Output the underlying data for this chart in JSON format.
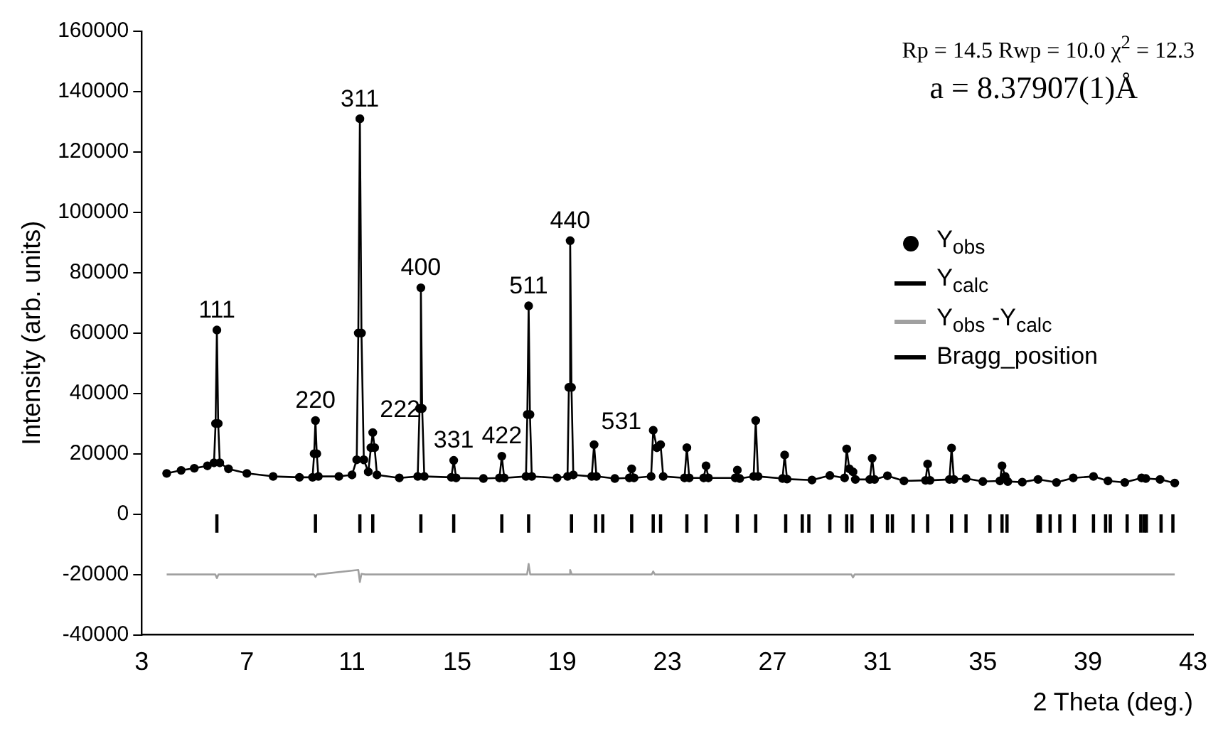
{
  "chart_data": {
    "type": "scatter",
    "xlabel": "2 Theta (deg.)",
    "ylabel": "Intensity (arb. units)",
    "xlim": [
      3,
      43
    ],
    "xticks": [
      3,
      7,
      11,
      15,
      19,
      23,
      27,
      31,
      35,
      39,
      43
    ],
    "ylim": [
      -40000,
      160000
    ],
    "yticks": [
      -40000,
      -20000,
      0,
      20000,
      40000,
      60000,
      80000,
      100000,
      120000,
      140000,
      160000
    ],
    "grid": false,
    "legend": "right",
    "series": [
      {
        "name": "Y$_{obs}$",
        "marker": "circle",
        "color": "#000000",
        "x": [
          3.95,
          4.5,
          5.0,
          5.5,
          5.75,
          5.81,
          5.86,
          5.91,
          5.97,
          6.3,
          7.0,
          8.0,
          9.0,
          9.5,
          9.56,
          9.61,
          9.66,
          9.72,
          10.5,
          11.0,
          11.18,
          11.24,
          11.3,
          11.36,
          11.45,
          11.62,
          11.72,
          11.79,
          11.86,
          11.95,
          12.8,
          13.5,
          13.57,
          13.62,
          13.67,
          13.75,
          14.78,
          14.87,
          14.96,
          16.0,
          16.61,
          16.7,
          16.79,
          17.62,
          17.67,
          17.72,
          17.77,
          17.84,
          18.8,
          19.2,
          19.25,
          19.3,
          19.35,
          19.42,
          20.12,
          20.21,
          20.3,
          21.0,
          21.55,
          21.64,
          21.73,
          22.38,
          22.46,
          22.6,
          22.74,
          22.84,
          23.65,
          23.74,
          23.83,
          24.38,
          24.47,
          24.56,
          25.58,
          25.66,
          25.75,
          26.28,
          26.36,
          26.45,
          27.38,
          27.46,
          27.55,
          28.5,
          29.18,
          29.74,
          29.82,
          29.92,
          30.06,
          30.15,
          30.7,
          30.79,
          30.88,
          31.37,
          32.0,
          32.82,
          32.9,
          32.99,
          33.73,
          33.81,
          33.9,
          34.36,
          35.0,
          35.65,
          35.73,
          35.85,
          35.95,
          36.5,
          37.1,
          37.8,
          38.44,
          39.21,
          39.76,
          40.4,
          41.04,
          41.2,
          41.74,
          42.3
        ],
        "values": [
          13500,
          14500,
          15200,
          16000,
          17000,
          30000,
          61000,
          30000,
          17000,
          15000,
          13500,
          12500,
          12200,
          12200,
          20000,
          31000,
          20000,
          12500,
          12500,
          13000,
          18000,
          60000,
          131000,
          60000,
          18000,
          14000,
          22000,
          27000,
          22000,
          13000,
          12000,
          12500,
          35000,
          75000,
          35000,
          12500,
          12200,
          17800,
          12000,
          11800,
          12000,
          19200,
          12000,
          12500,
          33000,
          69000,
          33000,
          12500,
          12000,
          12500,
          42000,
          90600,
          42000,
          13000,
          12500,
          23000,
          12500,
          11800,
          12000,
          15000,
          12000,
          12500,
          27800,
          22000,
          23000,
          12500,
          12000,
          22000,
          12000,
          12000,
          16000,
          12000,
          12000,
          14600,
          11800,
          12500,
          31000,
          12500,
          11800,
          19600,
          11600,
          11300,
          12800,
          12000,
          21600,
          15000,
          14000,
          11500,
          11500,
          18500,
          11500,
          12700,
          11000,
          11200,
          16600,
          11200,
          11500,
          21900,
          11500,
          11800,
          10800,
          11000,
          16000,
          12500,
          10800,
          10600,
          11500,
          10500,
          12000,
          12500,
          11000,
          10500,
          12000,
          11800,
          11500,
          10300
        ]
      },
      {
        "name": "Y$_{calc}$",
        "type": "line",
        "color": "#000000",
        "x": [
          3.95,
          4.5,
          5.0,
          5.5,
          5.75,
          5.81,
          5.86,
          5.91,
          5.97,
          6.3,
          7.0,
          8.0,
          9.0,
          9.5,
          9.56,
          9.61,
          9.66,
          9.72,
          10.5,
          11.0,
          11.18,
          11.24,
          11.3,
          11.36,
          11.45,
          11.62,
          11.72,
          11.79,
          11.86,
          11.95,
          12.8,
          13.5,
          13.57,
          13.62,
          13.67,
          13.75,
          14.78,
          14.87,
          14.96,
          16.0,
          16.61,
          16.7,
          16.79,
          17.62,
          17.67,
          17.72,
          17.77,
          17.84,
          18.8,
          19.2,
          19.25,
          19.3,
          19.35,
          19.42,
          20.12,
          20.21,
          20.3,
          21.0,
          21.55,
          21.64,
          21.73,
          22.38,
          22.46,
          22.6,
          22.74,
          22.84,
          23.65,
          23.74,
          23.83,
          24.38,
          24.47,
          24.56,
          25.58,
          25.66,
          25.75,
          26.28,
          26.36,
          26.45,
          27.38,
          27.46,
          27.55,
          28.5,
          29.18,
          29.74,
          29.82,
          29.92,
          30.06,
          30.15,
          30.7,
          30.79,
          30.88,
          31.37,
          32.0,
          32.82,
          32.9,
          32.99,
          33.73,
          33.81,
          33.9,
          34.36,
          35.0,
          35.65,
          35.73,
          35.85,
          35.95,
          36.5,
          37.1,
          37.8,
          38.44,
          39.21,
          39.76,
          40.4,
          41.04,
          41.2,
          41.74,
          42.3
        ],
        "values": [
          13500,
          14500,
          15200,
          16000,
          17000,
          30000,
          61000,
          30000,
          17000,
          15000,
          13500,
          12500,
          12200,
          12200,
          20000,
          31000,
          20000,
          12500,
          12500,
          13000,
          18000,
          60000,
          131000,
          60000,
          18000,
          14000,
          22000,
          27000,
          22000,
          13000,
          12000,
          12500,
          35000,
          75000,
          35000,
          12500,
          12200,
          17800,
          12000,
          11800,
          12000,
          19200,
          12000,
          12500,
          33000,
          69000,
          33000,
          12500,
          12000,
          12500,
          42000,
          90600,
          42000,
          13000,
          12500,
          23000,
          12500,
          11800,
          12000,
          15000,
          12000,
          12500,
          27800,
          22000,
          23000,
          12500,
          12000,
          22000,
          12000,
          12000,
          16000,
          12000,
          12000,
          14600,
          11800,
          12500,
          31000,
          12500,
          11800,
          19600,
          11600,
          11300,
          12800,
          12000,
          21600,
          15000,
          14000,
          11500,
          11500,
          18500,
          11500,
          12700,
          11000,
          11200,
          16600,
          11200,
          11500,
          21900,
          11500,
          11800,
          10800,
          11000,
          16000,
          12500,
          10800,
          10600,
          11500,
          10500,
          12000,
          12500,
          11000,
          10500,
          12000,
          11800,
          11500,
          10300
        ]
      },
      {
        "name": "Y$_{obs}$ -Y$_{calc}$",
        "type": "line",
        "color": "#a0a0a0",
        "x": [
          3.95,
          5.8,
          5.86,
          5.92,
          9.55,
          9.61,
          9.67,
          11.24,
          11.3,
          11.36,
          11.5,
          17.66,
          17.72,
          17.78,
          19.25,
          19.3,
          19.36,
          22.4,
          22.46,
          22.52,
          30.0,
          30.06,
          30.12,
          42.3
        ],
        "values": [
          -20000,
          -20000,
          -21200,
          -20000,
          -20000,
          -20800,
          -20000,
          -18500,
          -22500,
          -19800,
          -20000,
          -20000,
          -16500,
          -20000,
          -20000,
          -18500,
          -20000,
          -20000,
          -19000,
          -20000,
          -20000,
          -21000,
          -20000,
          -20000
        ]
      },
      {
        "name": "Bragg_position",
        "type": "bar",
        "color": "#000000",
        "base": [
          -6000,
          -6000,
          -6000,
          -6000,
          -6000,
          -6000,
          -6000,
          -6000,
          -6000,
          -6000,
          -6000,
          -6000,
          -6000,
          -6000,
          -6000,
          -6000,
          -6000,
          -6000,
          -6000,
          -6000,
          -6000,
          -6000,
          -6000,
          -6000,
          -6000,
          -6000,
          -6000,
          -6000,
          -6000,
          -6000,
          -6000,
          -6000,
          -6000,
          -6000,
          -6000,
          -6000,
          -6000,
          -6000,
          -6000,
          -6000,
          -6000,
          -6000,
          -6000,
          -6000,
          -6000,
          -6000,
          -6000,
          -6000
        ],
        "x": [
          5.86,
          9.61,
          11.3,
          11.79,
          13.62,
          14.87,
          16.7,
          17.72,
          19.35,
          20.27,
          20.54,
          21.64,
          22.46,
          22.74,
          23.74,
          24.47,
          25.66,
          26.36,
          27.5,
          28.13,
          28.38,
          29.18,
          29.82,
          30.02,
          30.79,
          31.37,
          31.56,
          32.35,
          32.9,
          33.81,
          34.36,
          35.27,
          35.73,
          35.92,
          37.1,
          37.19,
          37.56,
          37.93,
          38.48,
          39.21,
          39.67,
          39.85,
          40.49,
          41.01,
          41.13,
          41.22,
          41.78,
          42.23
        ],
        "values": [
          6000,
          6000,
          6000,
          6000,
          6000,
          6000,
          6000,
          6000,
          6000,
          6000,
          6000,
          6000,
          6000,
          6000,
          6000,
          6000,
          6000,
          6000,
          6000,
          6000,
          6000,
          6000,
          6000,
          6000,
          6000,
          6000,
          6000,
          6000,
          6000,
          6000,
          6000,
          6000,
          6000,
          6000,
          6000,
          6000,
          6000,
          6000,
          6000,
          6000,
          6000,
          6000,
          6000,
          6000,
          6000,
          6000,
          6000,
          6000
        ]
      }
    ],
    "annotations": [
      {
        "text": "111",
        "x": 5.86,
        "y": 61000
      },
      {
        "text": "220",
        "x": 9.61,
        "y": 31000
      },
      {
        "text": "311",
        "x": 11.3,
        "y": 131000
      },
      {
        "text": "222",
        "x": 11.79,
        "y": 27000
      },
      {
        "text": "400",
        "x": 13.62,
        "y": 75000
      },
      {
        "text": "331",
        "x": 14.87,
        "y": 17800
      },
      {
        "text": "422",
        "x": 16.7,
        "y": 19200
      },
      {
        "text": "511",
        "x": 17.72,
        "y": 69000
      },
      {
        "text": "440",
        "x": 19.3,
        "y": 90600
      },
      {
        "text": "531",
        "x": 20.21,
        "y": 23000
      },
      "Rp = 14.5  Rwp = 10.0  χ$^{2}$ = 12.3",
      "a = 8.37907(1)Å"
    ]
  }
}
